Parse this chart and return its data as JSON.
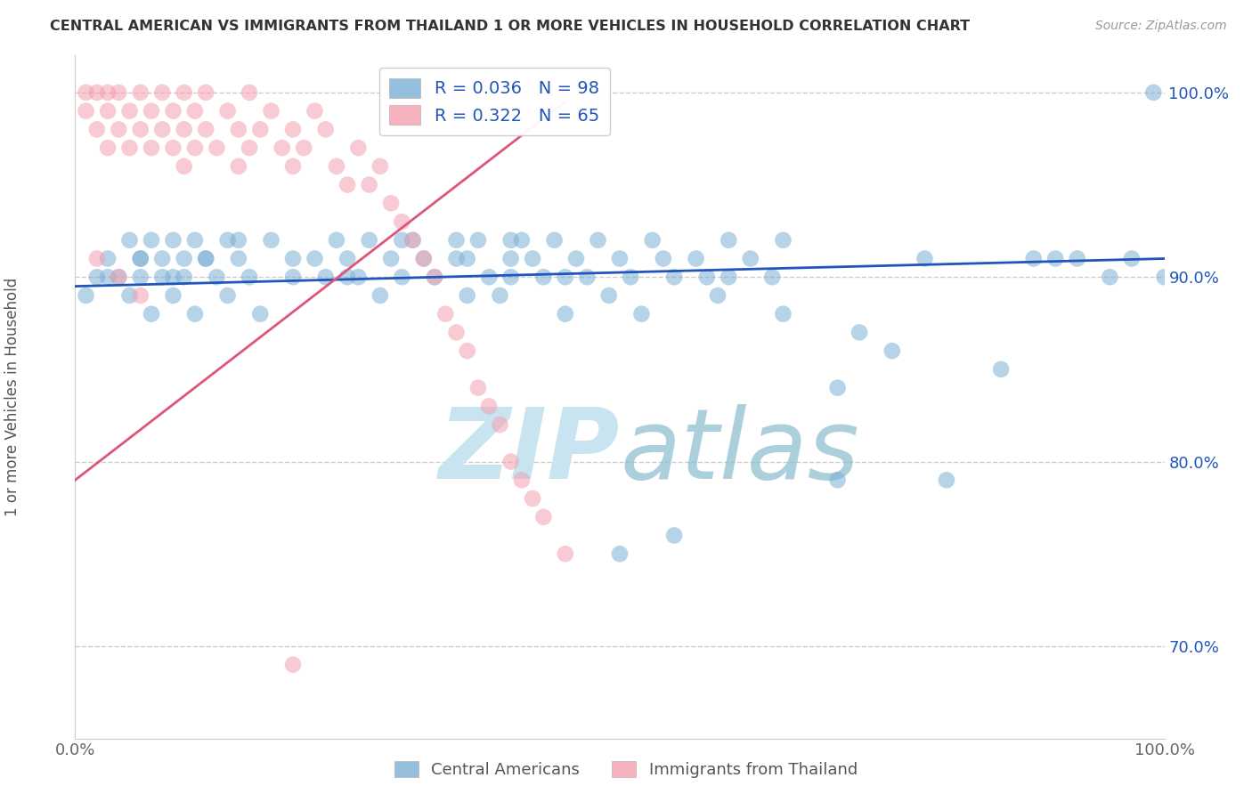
{
  "title": "CENTRAL AMERICAN VS IMMIGRANTS FROM THAILAND 1 OR MORE VEHICLES IN HOUSEHOLD CORRELATION CHART",
  "source": "Source: ZipAtlas.com",
  "ylabel": "1 or more Vehicles in Household",
  "xlim": [
    0,
    100
  ],
  "ylim": [
    65,
    102
  ],
  "xticks": [
    0,
    20,
    40,
    60,
    80,
    100
  ],
  "xticklabels": [
    "0.0%",
    "",
    "",
    "",
    "",
    "100.0%"
  ],
  "yticks": [
    70,
    80,
    90,
    100
  ],
  "yticklabels": [
    "70.0%",
    "80.0%",
    "90.0%",
    "100.0%"
  ],
  "legend_labels": [
    "Central Americans",
    "Immigrants from Thailand"
  ],
  "R_blue": 0.036,
  "N_blue": 98,
  "R_pink": 0.322,
  "N_pink": 65,
  "blue_color": "#7BAFD4",
  "pink_color": "#F4A0B0",
  "blue_line_color": "#2255BB",
  "pink_line_color": "#DD5577",
  "watermark_color": "#C8E4F0",
  "background_color": "#FFFFFF",
  "blue_points_x": [
    1,
    2,
    3,
    4,
    5,
    5,
    6,
    6,
    7,
    7,
    8,
    8,
    9,
    9,
    10,
    10,
    11,
    11,
    12,
    13,
    14,
    14,
    15,
    16,
    17,
    18,
    20,
    22,
    23,
    24,
    25,
    26,
    27,
    28,
    29,
    30,
    31,
    32,
    33,
    35,
    36,
    36,
    37,
    38,
    39,
    40,
    40,
    41,
    42,
    43,
    44,
    45,
    46,
    47,
    48,
    49,
    50,
    51,
    52,
    53,
    54,
    55,
    57,
    58,
    59,
    60,
    62,
    64,
    65,
    70,
    72,
    75,
    78,
    80,
    85,
    88,
    90,
    92,
    95,
    97,
    99,
    3,
    6,
    9,
    12,
    15,
    20,
    25,
    30,
    35,
    40,
    45,
    50,
    55,
    60,
    65,
    70,
    100
  ],
  "blue_points_y": [
    89,
    90,
    91,
    90,
    92,
    89,
    91,
    90,
    92,
    88,
    91,
    90,
    92,
    89,
    91,
    90,
    92,
    88,
    91,
    90,
    92,
    89,
    91,
    90,
    88,
    92,
    90,
    91,
    90,
    92,
    91,
    90,
    92,
    89,
    91,
    90,
    92,
    91,
    90,
    92,
    91,
    89,
    92,
    90,
    89,
    91,
    90,
    92,
    91,
    90,
    92,
    88,
    91,
    90,
    92,
    89,
    91,
    90,
    88,
    92,
    91,
    90,
    91,
    90,
    89,
    92,
    91,
    90,
    88,
    84,
    87,
    86,
    91,
    79,
    85,
    91,
    91,
    91,
    90,
    91,
    100,
    90,
    91,
    90,
    91,
    92,
    91,
    90,
    92,
    91,
    92,
    90,
    75,
    76,
    90,
    92,
    79,
    90
  ],
  "pink_points_x": [
    1,
    1,
    2,
    2,
    3,
    3,
    3,
    4,
    4,
    5,
    5,
    6,
    6,
    7,
    7,
    8,
    8,
    9,
    9,
    10,
    10,
    10,
    11,
    11,
    12,
    12,
    13,
    14,
    15,
    15,
    16,
    16,
    17,
    18,
    19,
    20,
    20,
    21,
    22,
    23,
    24,
    25,
    26,
    27,
    28,
    29,
    30,
    31,
    32,
    33,
    34,
    35,
    36,
    37,
    38,
    39,
    40,
    41,
    42,
    43,
    45,
    2,
    4,
    6,
    20
  ],
  "pink_points_y": [
    99,
    100,
    100,
    98,
    100,
    99,
    97,
    100,
    98,
    99,
    97,
    100,
    98,
    99,
    97,
    100,
    98,
    99,
    97,
    100,
    98,
    96,
    99,
    97,
    100,
    98,
    97,
    99,
    98,
    96,
    100,
    97,
    98,
    99,
    97,
    98,
    96,
    97,
    99,
    98,
    96,
    95,
    97,
    95,
    96,
    94,
    93,
    92,
    91,
    90,
    88,
    87,
    86,
    84,
    83,
    82,
    80,
    79,
    78,
    77,
    75,
    91,
    90,
    89,
    69
  ],
  "blue_trend_x0": 0,
  "blue_trend_y0": 89.5,
  "blue_trend_x1": 100,
  "blue_trend_y1": 91.0,
  "pink_trend_x0": 0,
  "pink_trend_y0": 79.0,
  "pink_trend_x1": 45,
  "pink_trend_y1": 99.5
}
